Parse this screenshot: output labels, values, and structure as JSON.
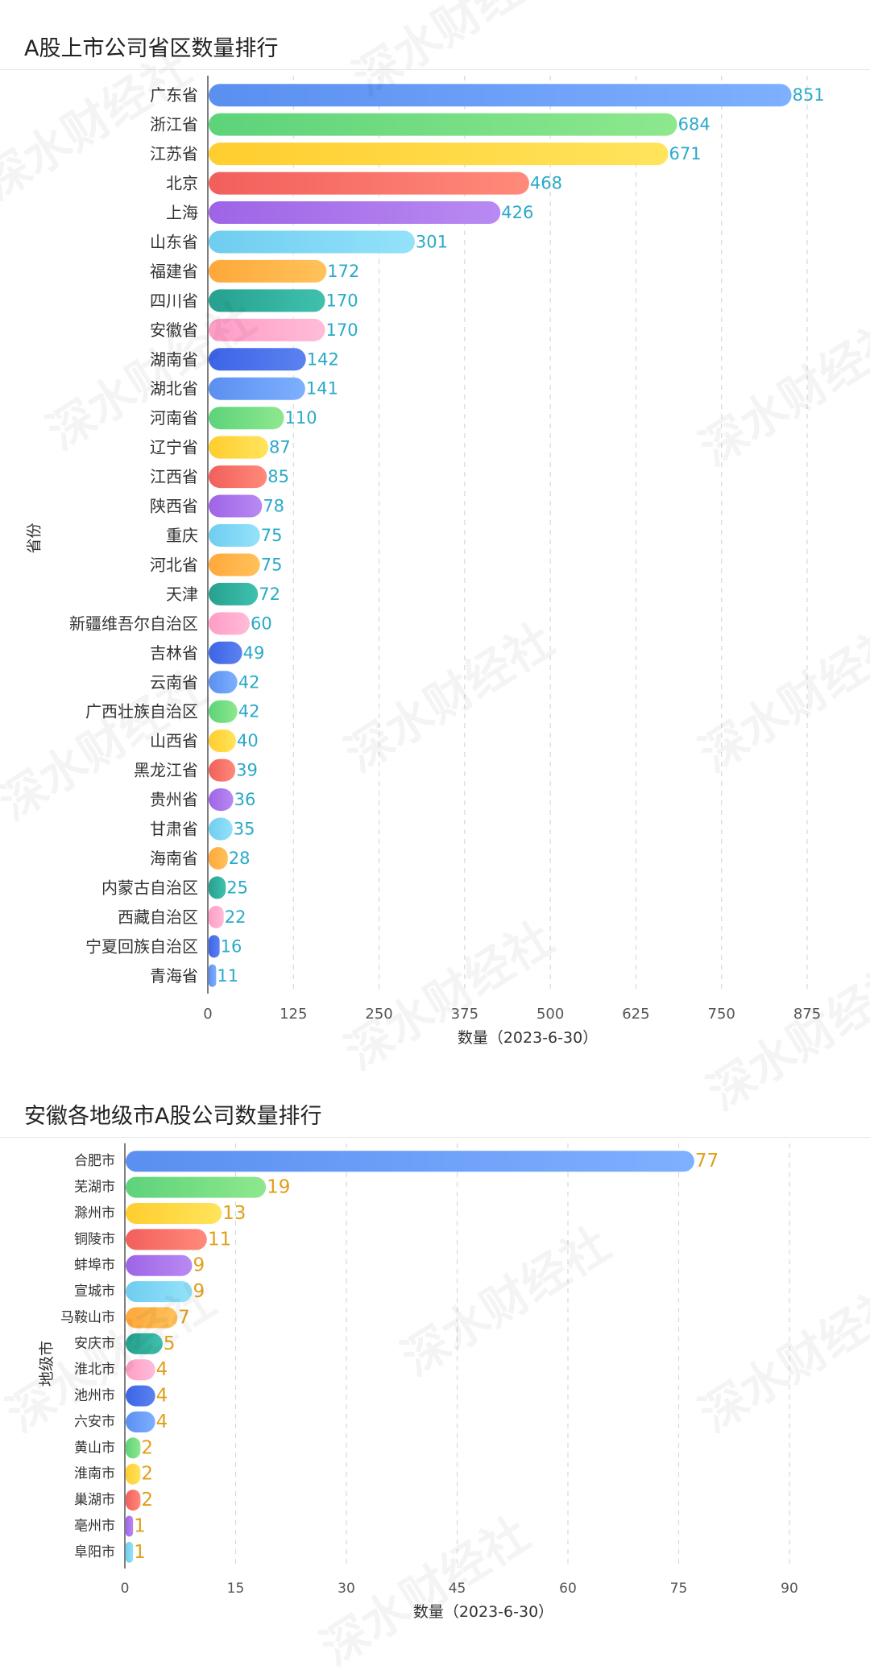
{
  "watermark": "深水财经社",
  "chart_data": [
    {
      "type": "bar",
      "orientation": "horizontal",
      "title": "A股上市公司省区数量排行",
      "xlabel": "数量（2023-6-30）",
      "ylabel": "省份",
      "xlim": [
        0,
        875
      ],
      "xticks": [
        0,
        125,
        250,
        375,
        500,
        625,
        750,
        875
      ],
      "grid": "vertical-dashed",
      "label_color": "#2aa9c9",
      "categories": [
        "广东省",
        "浙江省",
        "江苏省",
        "北京",
        "上海",
        "山东省",
        "福建省",
        "四川省",
        "安徽省",
        "湖南省",
        "湖北省",
        "河南省",
        "辽宁省",
        "江西省",
        "陕西省",
        "重庆",
        "河北省",
        "天津",
        "新疆维吾尔自治区",
        "吉林省",
        "云南省",
        "广西壮族自治区",
        "山西省",
        "黑龙江省",
        "贵州省",
        "甘肃省",
        "海南省",
        "内蒙古自治区",
        "西藏自治区",
        "宁夏回族自治区",
        "青海省"
      ],
      "values": [
        851,
        684,
        671,
        468,
        426,
        301,
        172,
        170,
        170,
        142,
        141,
        110,
        87,
        85,
        78,
        75,
        75,
        72,
        60,
        49,
        42,
        42,
        40,
        39,
        36,
        35,
        28,
        25,
        22,
        16,
        11
      ]
    },
    {
      "type": "bar",
      "orientation": "horizontal",
      "title": "安徽各地级市A股公司数量排行",
      "xlabel": "数量（2023-6-30）",
      "ylabel": "地级市",
      "xlim": [
        0,
        90
      ],
      "xticks": [
        0,
        15,
        30,
        45,
        60,
        75,
        90
      ],
      "grid": "vertical-dashed",
      "label_color": "#e0a019",
      "categories": [
        "合肥市",
        "芜湖市",
        "滁州市",
        "铜陵市",
        "蚌埠市",
        "宣城市",
        "马鞍山市",
        "安庆市",
        "淮北市",
        "池州市",
        "六安市",
        "黄山市",
        "淮南市",
        "巢湖市",
        "亳州市",
        "阜阳市"
      ],
      "values": [
        77,
        19,
        13,
        11,
        9,
        9,
        7,
        5,
        4,
        4,
        4,
        2,
        2,
        2,
        1,
        1
      ]
    }
  ],
  "palette": [
    [
      "#5b8ff0",
      "#7eb0ff"
    ],
    [
      "#5dd37a",
      "#8ee88d"
    ],
    [
      "#ffcd2e",
      "#ffe45c"
    ],
    [
      "#f25f5c",
      "#ff8a7a"
    ],
    [
      "#9e64e6",
      "#b98af2"
    ],
    [
      "#6fcdf0",
      "#94e2fa"
    ],
    [
      "#ffa83a",
      "#ffc25a"
    ],
    [
      "#26a08f",
      "#3fc1ae"
    ],
    [
      "#ff9cc6",
      "#ffbcd8"
    ],
    [
      "#3d64e6",
      "#5b82f0"
    ]
  ]
}
